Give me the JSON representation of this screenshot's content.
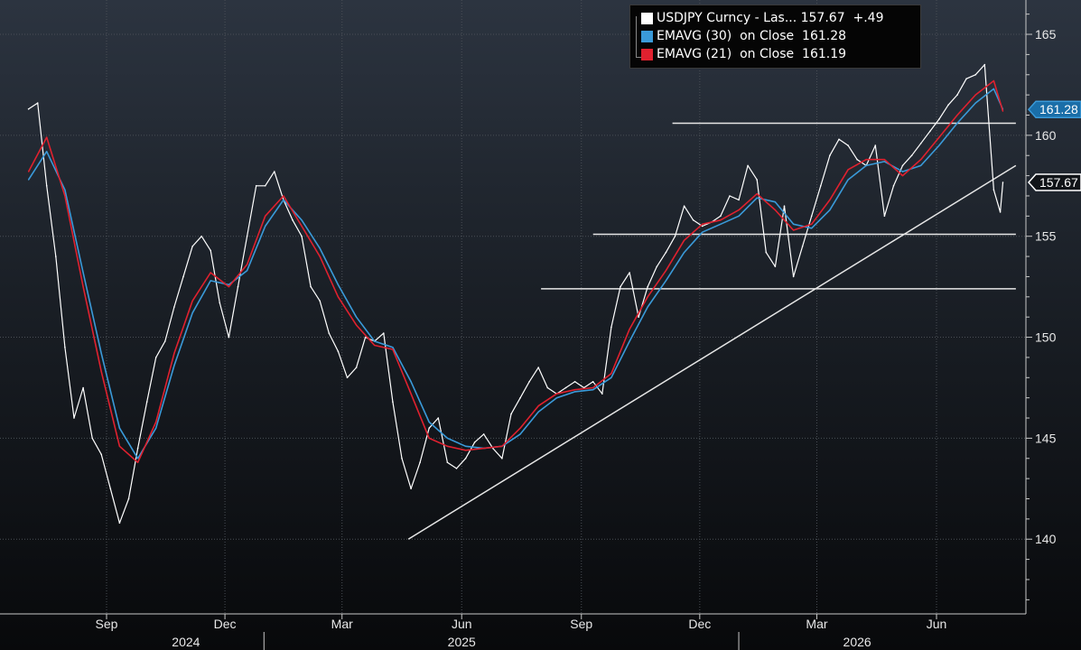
{
  "chart_data": {
    "type": "line",
    "legend": [
      {
        "label": "USDJPY Curncy - Las... 157.67  +.49",
        "color": "#ffffff"
      },
      {
        "label": "EMAVG (30)  on Close  161.28",
        "color": "#3a9ad9"
      },
      {
        "label": "EMAVG (21)  on Close  161.19",
        "color": "#e0212f"
      }
    ],
    "legend_placement": "top-right",
    "yaxis": {
      "ticks": [
        140,
        145,
        150,
        155,
        160,
        165
      ],
      "ylim": [
        136.3,
        166.7
      ],
      "side": "right"
    },
    "price_tags": [
      {
        "value": 161.28,
        "label": "161.28",
        "color": "#3a9ad9"
      },
      {
        "value": 157.67,
        "label": "157.67",
        "color": "#ffffff"
      }
    ],
    "xaxis": {
      "months": [
        {
          "label": "Sep",
          "date": "2024-09"
        },
        {
          "label": "Dec",
          "date": "2024-12"
        },
        {
          "label": "Mar",
          "date": "2025-03"
        },
        {
          "label": "Jun",
          "date": "2025-06"
        },
        {
          "label": "Sep",
          "date": "2025-09"
        },
        {
          "label": "Dec",
          "date": "2025-12"
        },
        {
          "label": "Mar",
          "date": "2026-03"
        },
        {
          "label": "Jun",
          "date": "2026-06"
        }
      ],
      "years": [
        {
          "label": "2024",
          "date": "2024-11"
        },
        {
          "label": "2025",
          "date": "2025-06"
        },
        {
          "label": "2026",
          "date": "2026-04"
        }
      ],
      "year_dividers": [
        "2024-12-31",
        "2025-12-31"
      ],
      "range": [
        "2024-07-01",
        "2026-08-01"
      ]
    },
    "series": [
      {
        "name": "USDJPY Curncy",
        "color": "#ffffff",
        "x": [
          "2024-07-03",
          "2024-07-10",
          "2024-07-17",
          "2024-07-24",
          "2024-07-31",
          "2024-08-07",
          "2024-08-14",
          "2024-08-21",
          "2024-08-28",
          "2024-09-04",
          "2024-09-11",
          "2024-09-18",
          "2024-09-25",
          "2024-10-02",
          "2024-10-09",
          "2024-10-16",
          "2024-10-23",
          "2024-10-30",
          "2024-11-06",
          "2024-11-13",
          "2024-11-20",
          "2024-11-27",
          "2024-12-04",
          "2024-12-11",
          "2024-12-18",
          "2024-12-25",
          "2025-01-01",
          "2025-01-08",
          "2025-01-15",
          "2025-01-22",
          "2025-01-29",
          "2025-02-05",
          "2025-02-12",
          "2025-02-19",
          "2025-02-26",
          "2025-03-05",
          "2025-03-12",
          "2025-03-19",
          "2025-03-26",
          "2025-04-02",
          "2025-04-09",
          "2025-04-16",
          "2025-04-23",
          "2025-04-30",
          "2025-05-07",
          "2025-05-14",
          "2025-05-21",
          "2025-05-28",
          "2025-06-04",
          "2025-06-11",
          "2025-06-18",
          "2025-06-25",
          "2025-07-02",
          "2025-07-09",
          "2025-07-16",
          "2025-07-23",
          "2025-07-30",
          "2025-08-06",
          "2025-08-13",
          "2025-08-20",
          "2025-08-27",
          "2025-09-03",
          "2025-09-10",
          "2025-09-17",
          "2025-09-24",
          "2025-10-01",
          "2025-10-08",
          "2025-10-15",
          "2025-10-22",
          "2025-10-29",
          "2025-11-05",
          "2025-11-12",
          "2025-11-19",
          "2025-11-26",
          "2025-12-03",
          "2025-12-10",
          "2025-12-17",
          "2025-12-24",
          "2025-12-31",
          "2026-01-07",
          "2026-01-14",
          "2026-01-21",
          "2026-01-28",
          "2026-02-04",
          "2026-02-11",
          "2026-02-18",
          "2026-02-25",
          "2026-03-04",
          "2026-03-11",
          "2026-03-18",
          "2026-03-25",
          "2026-04-01",
          "2026-04-08",
          "2026-04-15",
          "2026-04-22",
          "2026-04-29",
          "2026-05-06",
          "2026-05-13",
          "2026-05-20",
          "2026-05-27",
          "2026-06-03",
          "2026-06-10",
          "2026-06-17",
          "2026-06-24",
          "2026-07-01",
          "2026-07-08",
          "2026-07-15",
          "2026-07-20",
          "2026-07-22"
        ],
        "y": [
          161.3,
          161.6,
          157.5,
          154.0,
          149.5,
          146.0,
          147.5,
          145.0,
          144.2,
          142.5,
          140.8,
          142.0,
          144.5,
          146.8,
          149.0,
          149.8,
          151.5,
          153.0,
          154.5,
          155.0,
          154.3,
          151.7,
          150.0,
          152.5,
          155.0,
          157.5,
          157.5,
          158.2,
          156.8,
          155.8,
          155.0,
          152.5,
          151.8,
          150.2,
          149.3,
          148.0,
          148.5,
          150.0,
          149.8,
          150.2,
          146.8,
          144.0,
          142.5,
          143.8,
          145.5,
          146.0,
          143.8,
          143.5,
          144.0,
          144.8,
          145.2,
          144.5,
          144.0,
          146.2,
          147.0,
          147.8,
          148.5,
          147.5,
          147.2,
          147.5,
          147.8,
          147.5,
          147.8,
          147.2,
          150.5,
          152.5,
          153.2,
          151.0,
          152.5,
          153.5,
          154.2,
          155.0,
          156.5,
          155.8,
          155.5,
          155.7,
          156.0,
          157.0,
          156.8,
          158.5,
          157.8,
          154.2,
          153.5,
          156.5,
          153.0,
          154.5,
          156.0,
          157.5,
          159.0,
          159.8,
          159.5,
          158.8,
          158.5,
          159.5,
          156.0,
          157.5,
          158.5,
          159.0,
          159.6,
          160.2,
          160.8,
          161.5,
          162.0,
          162.8,
          163.0,
          163.5,
          157.3,
          156.2,
          157.67
        ]
      },
      {
        "name": "EMAVG (30)",
        "color": "#3a9ad9",
        "x": [
          "2024-07-03",
          "2024-07-17",
          "2024-07-31",
          "2024-08-14",
          "2024-08-28",
          "2024-09-11",
          "2024-09-25",
          "2024-10-09",
          "2024-10-23",
          "2024-11-06",
          "2024-11-20",
          "2024-12-04",
          "2024-12-18",
          "2025-01-01",
          "2025-01-15",
          "2025-01-29",
          "2025-02-12",
          "2025-02-26",
          "2025-03-12",
          "2025-03-26",
          "2025-04-09",
          "2025-04-23",
          "2025-05-07",
          "2025-05-21",
          "2025-06-04",
          "2025-06-18",
          "2025-07-02",
          "2025-07-16",
          "2025-07-30",
          "2025-08-13",
          "2025-08-27",
          "2025-09-10",
          "2025-09-24",
          "2025-10-08",
          "2025-10-22",
          "2025-11-05",
          "2025-11-19",
          "2025-12-03",
          "2025-12-17",
          "2025-12-31",
          "2026-01-14",
          "2026-01-28",
          "2026-02-11",
          "2026-02-25",
          "2026-03-11",
          "2026-03-25",
          "2026-04-08",
          "2026-04-22",
          "2026-05-06",
          "2026-05-20",
          "2026-06-03",
          "2026-06-17",
          "2026-07-01",
          "2026-07-15",
          "2026-07-22"
        ],
        "y": [
          157.8,
          159.2,
          157.3,
          153.2,
          149.2,
          145.5,
          144.0,
          145.5,
          148.6,
          151.2,
          152.8,
          152.6,
          153.3,
          155.5,
          156.8,
          155.8,
          154.4,
          152.6,
          151.0,
          149.8,
          149.5,
          147.8,
          145.8,
          145.0,
          144.6,
          144.5,
          144.6,
          145.2,
          146.3,
          147.0,
          147.3,
          147.4,
          148.0,
          149.8,
          151.5,
          152.8,
          154.2,
          155.2,
          155.6,
          156.0,
          156.9,
          156.7,
          155.6,
          155.4,
          156.3,
          157.8,
          158.5,
          158.7,
          158.2,
          158.5,
          159.5,
          160.6,
          161.6,
          162.3,
          161.28
        ]
      },
      {
        "name": "EMAVG (21)",
        "color": "#e0212f",
        "x": [
          "2024-07-03",
          "2024-07-17",
          "2024-07-31",
          "2024-08-14",
          "2024-08-28",
          "2024-09-11",
          "2024-09-25",
          "2024-10-09",
          "2024-10-23",
          "2024-11-06",
          "2024-11-20",
          "2024-12-04",
          "2024-12-18",
          "2025-01-01",
          "2025-01-15",
          "2025-01-29",
          "2025-02-12",
          "2025-02-26",
          "2025-03-12",
          "2025-03-26",
          "2025-04-09",
          "2025-04-23",
          "2025-05-07",
          "2025-05-21",
          "2025-06-04",
          "2025-06-18",
          "2025-07-02",
          "2025-07-16",
          "2025-07-30",
          "2025-08-13",
          "2025-08-27",
          "2025-09-10",
          "2025-09-24",
          "2025-10-08",
          "2025-10-22",
          "2025-11-05",
          "2025-11-19",
          "2025-12-03",
          "2025-12-17",
          "2025-12-31",
          "2026-01-14",
          "2026-01-28",
          "2026-02-11",
          "2026-02-25",
          "2026-03-11",
          "2026-03-25",
          "2026-04-08",
          "2026-04-22",
          "2026-05-06",
          "2026-05-20",
          "2026-06-03",
          "2026-06-17",
          "2026-07-01",
          "2026-07-15",
          "2026-07-22"
        ],
        "y": [
          158.2,
          159.9,
          157.0,
          152.5,
          148.3,
          144.6,
          143.8,
          145.8,
          149.2,
          151.8,
          153.2,
          152.5,
          153.6,
          156.0,
          157.0,
          155.5,
          154.0,
          152.0,
          150.6,
          149.6,
          149.4,
          147.2,
          145.0,
          144.6,
          144.4,
          144.5,
          144.6,
          145.5,
          146.6,
          147.2,
          147.4,
          147.5,
          148.2,
          150.4,
          152.0,
          153.3,
          154.8,
          155.6,
          155.8,
          156.3,
          157.1,
          156.3,
          155.3,
          155.6,
          156.8,
          158.3,
          158.8,
          158.8,
          158.0,
          158.8,
          159.9,
          161.0,
          162.0,
          162.7,
          161.19
        ]
      }
    ],
    "annotations": {
      "trendline": {
        "from": {
          "date": "2025-04-21",
          "value": 140.0
        },
        "to": {
          "date": "2026-08-01",
          "value": 158.5
        }
      },
      "horizontal_lines": [
        {
          "value": 160.6,
          "from": "2025-11-10",
          "to": "2026-08-01"
        },
        {
          "value": 155.1,
          "from": "2025-09-10",
          "to": "2026-08-01"
        },
        {
          "value": 152.4,
          "from": "2025-08-01",
          "to": "2026-08-01"
        }
      ]
    }
  }
}
